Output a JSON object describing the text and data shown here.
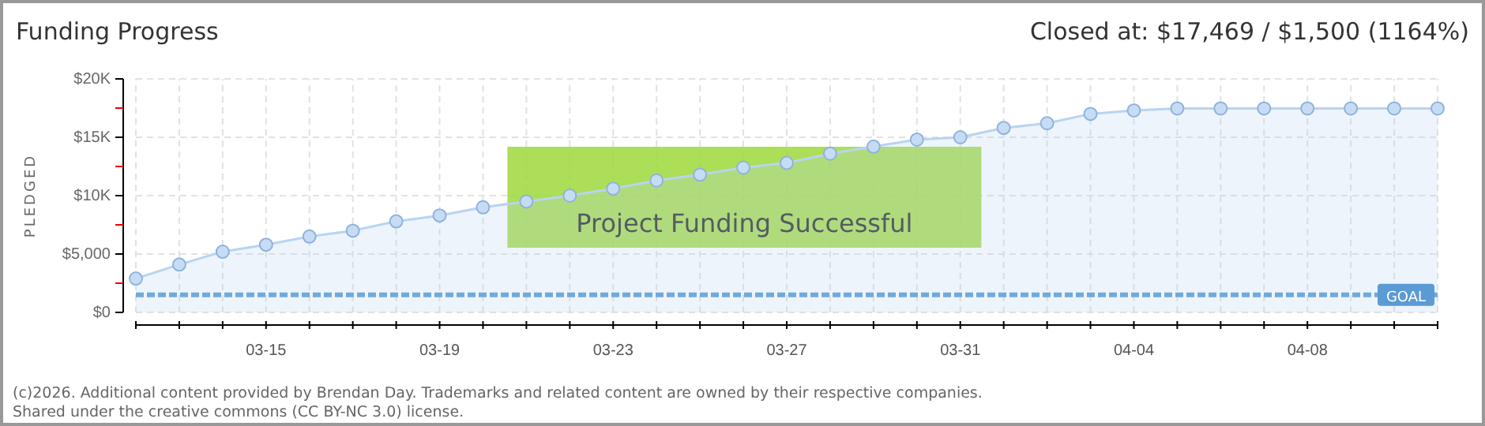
{
  "chart_data": {
    "type": "area",
    "title": "Funding Progress",
    "subtitle": "Closed at: $17,469 / $1,500 (1164%)",
    "ylabel": "PLEDGED",
    "x": [
      "--03-12",
      "--03-13",
      "--03-14",
      "--03-15",
      "--03-16",
      "--03-17",
      "--03-18",
      "--03-19",
      "--03-20",
      "--03-21",
      "--03-22",
      "--03-23",
      "--03-24",
      "--03-25",
      "--03-26",
      "--03-27",
      "--03-28",
      "--03-29",
      "--03-30",
      "--03-31",
      "--04-01",
      "--04-02",
      "--04-03",
      "--04-04",
      "--04-05",
      "--04-06",
      "--04-07",
      "--04-08",
      "--04-09",
      "--04-10",
      "--04-11"
    ],
    "series": [
      {
        "color": "#b8d4f0",
        "values": [
          2900,
          4100,
          5200,
          5800,
          6500,
          7000,
          7800,
          8300,
          9000,
          9500,
          10000,
          10600,
          11300,
          11800,
          12400,
          12800,
          13600,
          14200,
          14800,
          15000,
          15800,
          16200,
          17000,
          17300,
          17469,
          17469,
          17469,
          17469,
          17469,
          17469,
          17469
        ]
      }
    ],
    "marker": "circle",
    "grid": true,
    "xlim": [
      "--03-12",
      "--04-11"
    ],
    "xticks": [
      {
        "value": "--03-12",
        "label": null
      },
      {
        "value": "--03-13",
        "label": null
      },
      {
        "value": "--03-14",
        "label": null
      },
      {
        "value": "--03-15",
        "label": "03-15"
      },
      {
        "value": "--03-16",
        "label": null
      },
      {
        "value": "--03-17",
        "label": null
      },
      {
        "value": "--03-18",
        "label": null
      },
      {
        "value": "--03-19",
        "label": "03-19"
      },
      {
        "value": "--03-20",
        "label": null
      },
      {
        "value": "--03-21",
        "label": null
      },
      {
        "value": "--03-22",
        "label": null
      },
      {
        "value": "--03-23",
        "label": "03-23"
      },
      {
        "value": "--03-24",
        "label": null
      },
      {
        "value": "--03-25",
        "label": null
      },
      {
        "value": "--03-26",
        "label": null
      },
      {
        "value": "--03-27",
        "label": "03-27"
      },
      {
        "value": "--03-28",
        "label": null
      },
      {
        "value": "--03-29",
        "label": null
      },
      {
        "value": "--03-30",
        "label": null
      },
      {
        "value": "--03-31",
        "label": "03-31"
      },
      {
        "value": "--04-01",
        "label": null
      },
      {
        "value": "--04-02",
        "label": null
      },
      {
        "value": "--04-03",
        "label": null
      },
      {
        "value": "--04-04",
        "label": "04-04"
      },
      {
        "value": "--04-05",
        "label": null
      },
      {
        "value": "--04-06",
        "label": null
      },
      {
        "value": "--04-07",
        "label": null
      },
      {
        "value": "--04-08",
        "label": "04-08"
      },
      {
        "value": "--04-09",
        "label": null
      },
      {
        "value": "--04-10",
        "label": null
      },
      {
        "value": "--04-11",
        "label": null
      }
    ],
    "ylim": [
      0,
      20000
    ],
    "yticks": [
      {
        "value": 0,
        "label": "$0"
      },
      {
        "value": 2500,
        "label": null
      },
      {
        "value": 5000,
        "label": "$5,000"
      },
      {
        "value": 7500,
        "label": null
      },
      {
        "value": 10000,
        "label": "$10K"
      },
      {
        "value": 12500,
        "label": null
      },
      {
        "value": 15000,
        "label": "$15K"
      },
      {
        "value": 17500,
        "label": null
      },
      {
        "value": 20000,
        "label": "$20K"
      }
    ],
    "ref_lines": [
      {
        "axis": "y",
        "value": 1500,
        "label": "GOAL",
        "color": "#5b9bd5",
        "line_style": "dashed"
      }
    ],
    "annotations": [
      "Project Funding Successful",
      "(c)2026. Additional content provided by Brendan Day. Trademarks and related content are owned by their respective companies.",
      "Shared under the creative commons (CC BY-NC 3.0) license."
    ]
  }
}
